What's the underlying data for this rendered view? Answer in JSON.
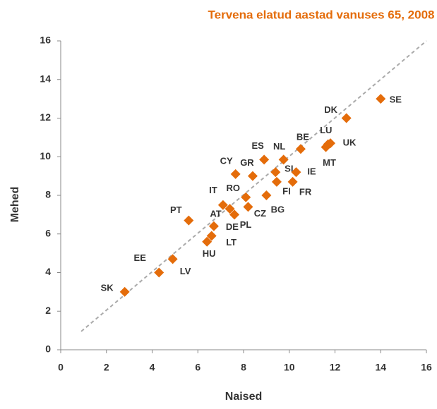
{
  "chart_data": {
    "type": "scatter",
    "title": "Tervena elatud aastad vanuses 65, 2008",
    "x_label": "Naised",
    "y_label": "Mehed",
    "color": "#e46c0a",
    "categories": [
      "SK",
      "EE",
      "LV",
      "PT",
      "HU",
      "LT",
      "DE",
      "AT",
      "IT",
      "PL",
      "CZ",
      "RO",
      "BG",
      "CY",
      "GR",
      "ES",
      "NL",
      "SI",
      "FI",
      "IE",
      "FR",
      "BE",
      "LU",
      "UK",
      "MT",
      "DK",
      "SE"
    ],
    "x": [
      2.8,
      4.3,
      4.9,
      5.6,
      6.4,
      6.6,
      6.7,
      7.4,
      7.1,
      7.6,
      8.2,
      8.1,
      9.0,
      7.65,
      8.4,
      8.9,
      9.75,
      9.4,
      9.45,
      10.3,
      10.15,
      10.5,
      11.7,
      11.8,
      11.6,
      12.5,
      14.0
    ],
    "values": [
      3.0,
      4.0,
      4.7,
      6.7,
      5.6,
      5.9,
      6.4,
      7.3,
      7.5,
      7.0,
      7.4,
      7.9,
      8.0,
      9.1,
      9.0,
      9.85,
      9.85,
      9.2,
      8.7,
      9.2,
      8.7,
      10.4,
      10.65,
      10.7,
      10.5,
      12.0,
      13.0
    ],
    "xlim": [
      0,
      16
    ],
    "xticks": [
      0,
      2,
      4,
      6,
      8,
      10,
      12,
      14,
      16
    ],
    "ylim": [
      0,
      16
    ],
    "yticks": [
      0,
      2,
      4,
      6,
      8,
      10,
      12,
      14,
      16
    ]
  }
}
